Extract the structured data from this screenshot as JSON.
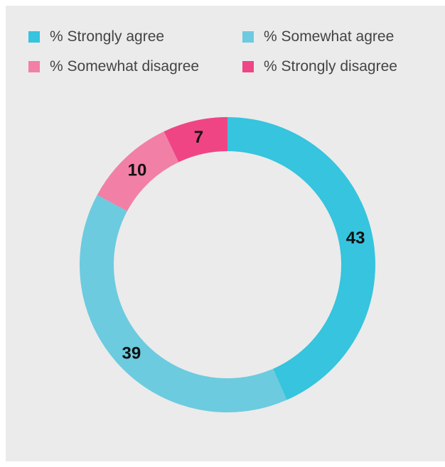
{
  "chart_data": {
    "type": "pie",
    "donut": true,
    "legend_position": "top",
    "categories": [
      "% Strongly agree",
      "% Somewhat agree",
      "% Somewhat disagree",
      "% Strongly disagree"
    ],
    "values": [
      43,
      39,
      10,
      7
    ],
    "colors": [
      "#36c4de",
      "#6ccbdf",
      "#f27fa6",
      "#ef4585"
    ],
    "background_color": "#ebebeb"
  }
}
